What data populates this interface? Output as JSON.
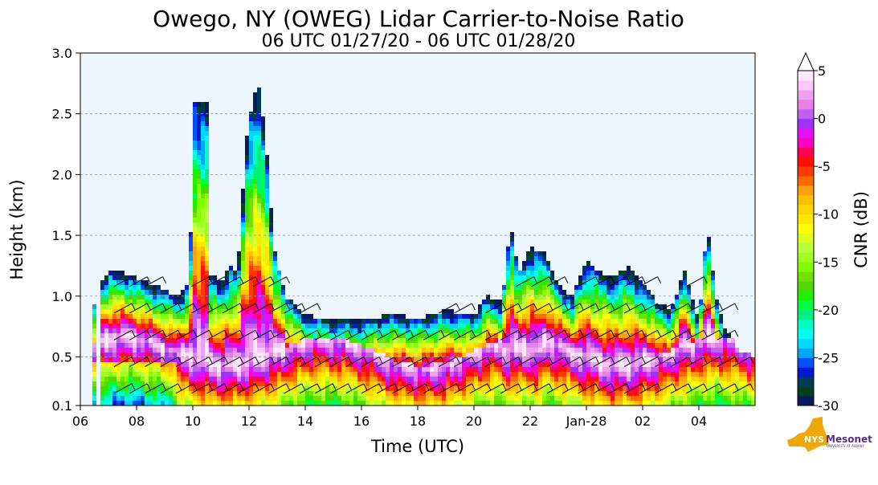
{
  "chart_data": {
    "type": "heatmap",
    "title": "Owego, NY (OWEG) Lidar Carrier-to-Noise Ratio",
    "subtitle": "06 UTC 01/27/20 - 06 UTC 01/28/20",
    "xlabel": "Time (UTC)",
    "ylabel": "Height (km)",
    "xlim_hours_from_start": [
      0,
      24
    ],
    "ylim": [
      0.1,
      3.0
    ],
    "x_ticks": [
      {
        "h": 0,
        "label": "06"
      },
      {
        "h": 2,
        "label": "08"
      },
      {
        "h": 4,
        "label": "10"
      },
      {
        "h": 6,
        "label": "12"
      },
      {
        "h": 8,
        "label": "14"
      },
      {
        "h": 10,
        "label": "16"
      },
      {
        "h": 12,
        "label": "18"
      },
      {
        "h": 14,
        "label": "20"
      },
      {
        "h": 16,
        "label": "22"
      },
      {
        "h": 18,
        "label": "Jan-28"
      },
      {
        "h": 20,
        "label": "02"
      },
      {
        "h": 22,
        "label": "04"
      }
    ],
    "y_ticks": [
      {
        "v": 0.1,
        "label": "0.1"
      },
      {
        "v": 0.5,
        "label": "0.5"
      },
      {
        "v": 1.0,
        "label": "1.0"
      },
      {
        "v": 1.5,
        "label": "1.5"
      },
      {
        "v": 2.0,
        "label": "2.0"
      },
      {
        "v": 2.5,
        "label": "2.5"
      },
      {
        "v": 3.0,
        "label": "3.0"
      }
    ],
    "grid": "horizontal dashed",
    "cloud_top_profile_km": [
      [
        0.0,
        0
      ],
      [
        0.4,
        0
      ],
      [
        0.45,
        0.95
      ],
      [
        0.6,
        0.95
      ],
      [
        0.65,
        0
      ],
      [
        0.7,
        1.1
      ],
      [
        1.0,
        1.2
      ],
      [
        1.5,
        1.2
      ],
      [
        2.0,
        1.15
      ],
      [
        2.5,
        1.1
      ],
      [
        3.0,
        1.05
      ],
      [
        3.5,
        1.0
      ],
      [
        3.9,
        1.1
      ],
      [
        4.0,
        2.6
      ],
      [
        4.5,
        2.6
      ],
      [
        4.6,
        1.2
      ],
      [
        5.0,
        1.1
      ],
      [
        5.3,
        1.25
      ],
      [
        5.6,
        1.2
      ],
      [
        5.9,
        2.3
      ],
      [
        6.3,
        2.8
      ],
      [
        6.6,
        2.3
      ],
      [
        6.9,
        1.4
      ],
      [
        7.3,
        1.0
      ],
      [
        8.0,
        0.85
      ],
      [
        9.0,
        0.8
      ],
      [
        10.0,
        0.8
      ],
      [
        11.0,
        0.85
      ],
      [
        12.0,
        0.82
      ],
      [
        13.0,
        0.88
      ],
      [
        14.0,
        0.85
      ],
      [
        14.5,
        1.0
      ],
      [
        15.0,
        0.95
      ],
      [
        15.3,
        1.6
      ],
      [
        15.6,
        1.2
      ],
      [
        16.0,
        1.4
      ],
      [
        16.5,
        1.35
      ],
      [
        17.0,
        1.1
      ],
      [
        17.5,
        1.0
      ],
      [
        18.0,
        1.3
      ],
      [
        18.5,
        1.2
      ],
      [
        19.0,
        1.15
      ],
      [
        19.5,
        1.25
      ],
      [
        20.0,
        1.1
      ],
      [
        20.5,
        0.95
      ],
      [
        21.0,
        0.9
      ],
      [
        21.5,
        1.2
      ],
      [
        22.0,
        0.8
      ],
      [
        22.3,
        1.6
      ],
      [
        22.6,
        1.0
      ],
      [
        23.0,
        0.7
      ],
      [
        23.5,
        0.55
      ],
      [
        24.0,
        0.5
      ]
    ],
    "cloud_base_km": 0.55,
    "colorbar": {
      "label": "CNR (dB)",
      "range": [
        -30,
        5
      ],
      "extend": "max",
      "ticks": [
        {
          "v": 5,
          "label": "5"
        },
        {
          "v": 0,
          "label": "0"
        },
        {
          "v": -5,
          "label": "-5"
        },
        {
          "v": -10,
          "label": "-10"
        },
        {
          "v": -15,
          "label": "-15"
        },
        {
          "v": -20,
          "label": "-20"
        },
        {
          "v": -25,
          "label": "-25"
        },
        {
          "v": -30,
          "label": "-30"
        }
      ],
      "colors": [
        "#0a1a5c",
        "#00401e",
        "#003a5a",
        "#0018d0",
        "#0050ff",
        "#00a8f0",
        "#00d8ff",
        "#00ffee",
        "#00ffc0",
        "#00f080",
        "#00ff40",
        "#20f000",
        "#50d800",
        "#70e000",
        "#80ff00",
        "#a0ff20",
        "#b8ff40",
        "#d8ff20",
        "#ffff00",
        "#ffe800",
        "#ffd800",
        "#ffc000",
        "#ffa010",
        "#ff6a00",
        "#ff3a00",
        "#ff1000",
        "#ff0050",
        "#ff00c8",
        "#e010ff",
        "#a030ff",
        "#c060f0",
        "#e880e8",
        "#f0a0f0",
        "#f8c8f8",
        "#fde8fd"
      ]
    }
  },
  "background_color": "#eef6fd",
  "logo": {
    "state": "NYS",
    "name": "Mesonet",
    "org": "UNIVERSITY AT ALBANY"
  }
}
